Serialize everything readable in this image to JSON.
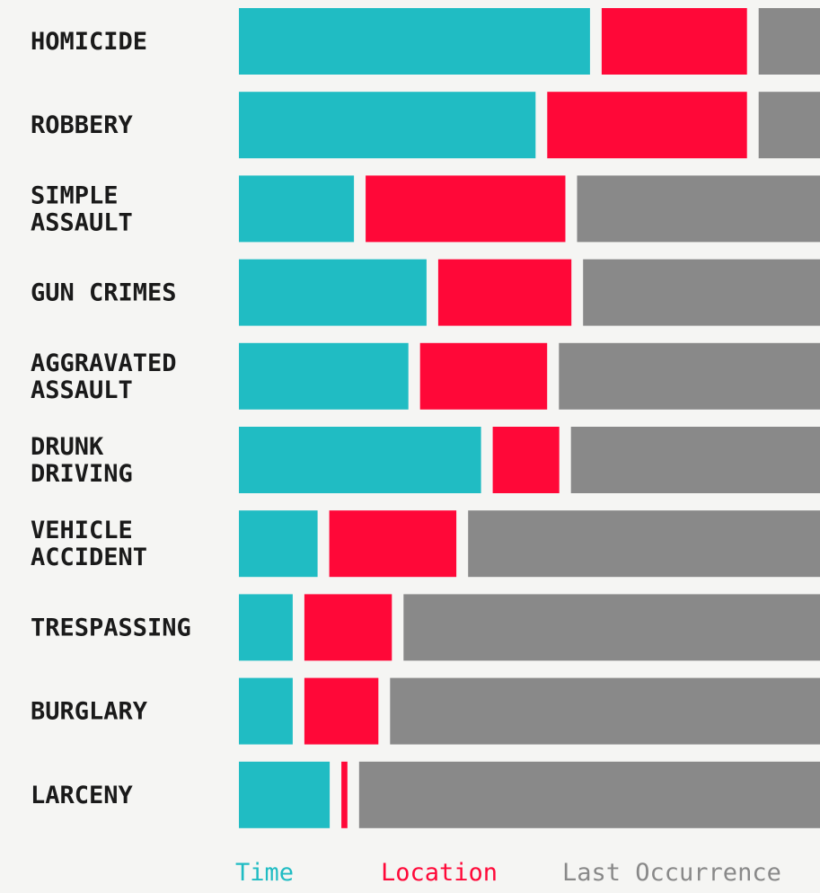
{
  "chart_data": {
    "type": "bar",
    "stacked": true,
    "orientation": "horizontal",
    "categories": [
      [
        "HOMICIDE"
      ],
      [
        "ROBBERY"
      ],
      [
        "SIMPLE",
        "ASSAULT"
      ],
      [
        "GUN CRIMES"
      ],
      [
        "AGGRAVATED",
        "ASSAULT"
      ],
      [
        "DRUNK",
        "DRIVING"
      ],
      [
        "VEHICLE",
        "ACCIDENT"
      ],
      [
        "TRESPASSING"
      ],
      [
        "BURGLARY"
      ],
      [
        "LARCENY"
      ]
    ],
    "series": [
      {
        "name": "Time",
        "color": "#20bcc3",
        "values": [
          58,
          49,
          19,
          31,
          28,
          40,
          13,
          8,
          8,
          15
        ]
      },
      {
        "name": "Location",
        "color": "#ff0838",
        "values": [
          24,
          33,
          33,
          22,
          21,
          11,
          21,
          13,
          11,
          1
        ]
      },
      {
        "name": "Last Occurrence",
        "color": "#898989",
        "values": [
          18,
          18,
          48,
          47,
          51,
          49,
          66,
          69,
          71,
          84
        ]
      }
    ],
    "legend_position": "bottom",
    "grid": false
  }
}
